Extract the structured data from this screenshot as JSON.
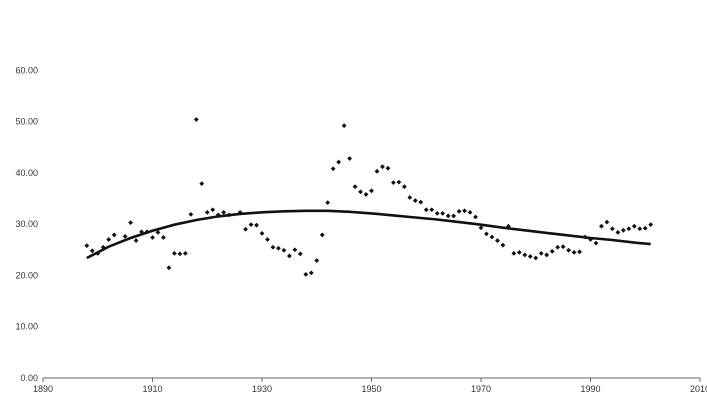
{
  "chart_data": {
    "type": "scatter",
    "title": "",
    "xlabel": "",
    "ylabel": "",
    "xlim": [
      1890,
      2010
    ],
    "ylim": [
      0,
      70
    ],
    "grid": false,
    "legend": "none",
    "x_ticks": [
      "1890",
      "1910",
      "1930",
      "1950",
      "1970",
      "1990",
      "2010"
    ],
    "y_ticks": [
      "0.00",
      "10.00",
      "20.00",
      "30.00",
      "40.00",
      "50.00",
      "60.00"
    ],
    "colors": {
      "points": "#111111",
      "trend": "#111111",
      "axis": "#666666"
    },
    "series": [
      {
        "values": [
          [
            1898,
            25.8
          ],
          [
            1899,
            24.8
          ],
          [
            1900,
            24.3
          ],
          [
            1901,
            25.5
          ],
          [
            1902,
            27.0
          ],
          [
            1903,
            27.9
          ],
          [
            1905,
            27.6
          ],
          [
            1906,
            30.3
          ],
          [
            1907,
            26.8
          ],
          [
            1908,
            28.5
          ],
          [
            1909,
            28.5
          ],
          [
            1910,
            27.4
          ],
          [
            1911,
            28.4
          ],
          [
            1912,
            27.4
          ],
          [
            1913,
            21.5
          ],
          [
            1914,
            24.3
          ],
          [
            1915,
            24.2
          ],
          [
            1916,
            24.3
          ],
          [
            1917,
            31.9
          ],
          [
            1918,
            50.4
          ],
          [
            1919,
            37.9
          ],
          [
            1920,
            32.3
          ],
          [
            1921,
            32.8
          ],
          [
            1922,
            31.8
          ],
          [
            1923,
            32.3
          ],
          [
            1924,
            31.8
          ],
          [
            1926,
            32.3
          ],
          [
            1927,
            29.0
          ],
          [
            1928,
            29.9
          ],
          [
            1929,
            29.8
          ],
          [
            1930,
            28.2
          ],
          [
            1931,
            27.0
          ],
          [
            1932,
            25.5
          ],
          [
            1933,
            25.3
          ],
          [
            1934,
            24.9
          ],
          [
            1935,
            23.8
          ],
          [
            1936,
            25.0
          ],
          [
            1937,
            24.2
          ],
          [
            1938,
            20.2
          ],
          [
            1939,
            20.5
          ],
          [
            1940,
            22.9
          ],
          [
            1941,
            27.9
          ],
          [
            1942,
            34.2
          ],
          [
            1943,
            40.8
          ],
          [
            1944,
            42.1
          ],
          [
            1945,
            49.2
          ],
          [
            1946,
            42.8
          ],
          [
            1947,
            37.3
          ],
          [
            1948,
            36.3
          ],
          [
            1949,
            35.8
          ],
          [
            1950,
            36.5
          ],
          [
            1951,
            40.3
          ],
          [
            1952,
            41.2
          ],
          [
            1953,
            40.9
          ],
          [
            1954,
            38.1
          ],
          [
            1955,
            38.2
          ],
          [
            1956,
            37.3
          ],
          [
            1957,
            35.2
          ],
          [
            1958,
            34.6
          ],
          [
            1959,
            34.3
          ],
          [
            1960,
            32.8
          ],
          [
            1961,
            32.8
          ],
          [
            1962,
            32.1
          ],
          [
            1963,
            32.1
          ],
          [
            1964,
            31.6
          ],
          [
            1965,
            31.6
          ],
          [
            1966,
            32.5
          ],
          [
            1967,
            32.6
          ],
          [
            1968,
            32.3
          ],
          [
            1969,
            31.4
          ],
          [
            1970,
            29.3
          ],
          [
            1971,
            28.1
          ],
          [
            1972,
            27.5
          ],
          [
            1973,
            26.8
          ],
          [
            1974,
            25.9
          ],
          [
            1975,
            29.6
          ],
          [
            1976,
            24.3
          ],
          [
            1977,
            24.5
          ],
          [
            1978,
            24.0
          ],
          [
            1979,
            23.7
          ],
          [
            1980,
            23.4
          ],
          [
            1981,
            24.3
          ],
          [
            1982,
            24.0
          ],
          [
            1983,
            24.7
          ],
          [
            1984,
            25.5
          ],
          [
            1985,
            25.6
          ],
          [
            1986,
            24.9
          ],
          [
            1987,
            24.5
          ],
          [
            1988,
            24.6
          ],
          [
            1989,
            27.5
          ],
          [
            1990,
            27.0
          ],
          [
            1991,
            26.3
          ],
          [
            1992,
            29.6
          ],
          [
            1993,
            30.4
          ],
          [
            1994,
            29.1
          ],
          [
            1995,
            28.4
          ],
          [
            1996,
            28.8
          ],
          [
            1997,
            29.1
          ],
          [
            1998,
            29.6
          ],
          [
            1999,
            29.1
          ],
          [
            2000,
            29.2
          ],
          [
            2001,
            29.9
          ]
        ]
      },
      {
        "type": "line",
        "values": [
          [
            1898,
            23.4
          ],
          [
            1902,
            25.6
          ],
          [
            1906,
            27.3
          ],
          [
            1910,
            28.7
          ],
          [
            1914,
            29.9
          ],
          [
            1918,
            30.8
          ],
          [
            1922,
            31.5
          ],
          [
            1926,
            32.0
          ],
          [
            1930,
            32.3
          ],
          [
            1934,
            32.5
          ],
          [
            1938,
            32.6
          ],
          [
            1942,
            32.6
          ],
          [
            1946,
            32.4
          ],
          [
            1950,
            32.1
          ],
          [
            1954,
            31.7
          ],
          [
            1958,
            31.3
          ],
          [
            1962,
            30.9
          ],
          [
            1966,
            30.4
          ],
          [
            1970,
            29.9
          ],
          [
            1974,
            29.3
          ],
          [
            1978,
            28.8
          ],
          [
            1982,
            28.3
          ],
          [
            1986,
            27.8
          ],
          [
            1990,
            27.3
          ],
          [
            1994,
            26.9
          ],
          [
            1998,
            26.4
          ],
          [
            2001,
            26.1
          ]
        ]
      }
    ]
  }
}
